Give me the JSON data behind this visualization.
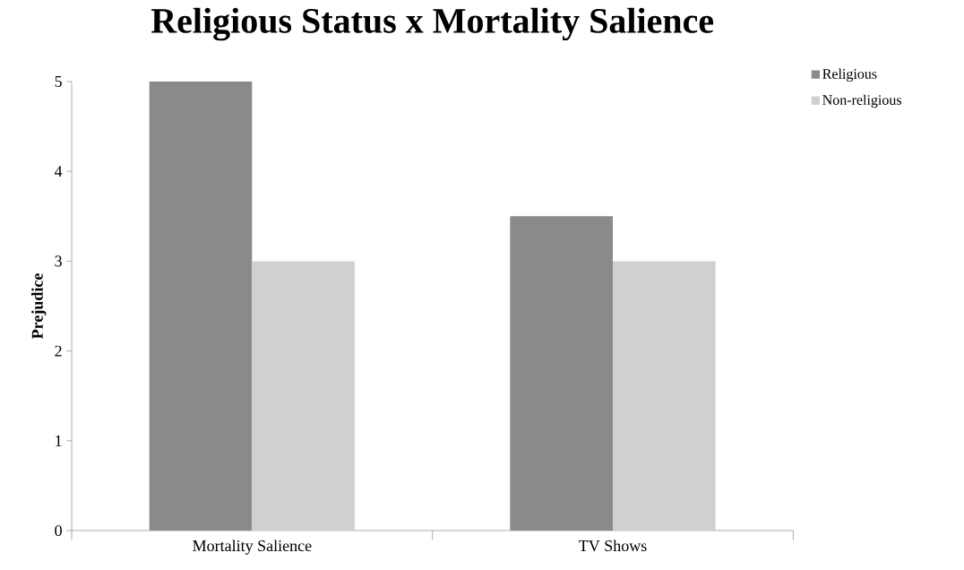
{
  "chart_data": {
    "type": "bar",
    "title": "Religious Status x Mortality Salience",
    "ylabel": "Prejudice",
    "categories": [
      "Mortality Salience",
      "TV Shows"
    ],
    "series": [
      {
        "name": "Religious",
        "color": "#8a8a8a",
        "values": [
          5,
          3.5
        ]
      },
      {
        "name": "Non-religious",
        "color": "#d0d0d0",
        "values": [
          3,
          3
        ]
      }
    ],
    "ylim": [
      0,
      5
    ],
    "yticks": [
      0,
      1,
      2,
      3,
      4,
      5
    ],
    "grid": false,
    "legend": "top right"
  }
}
